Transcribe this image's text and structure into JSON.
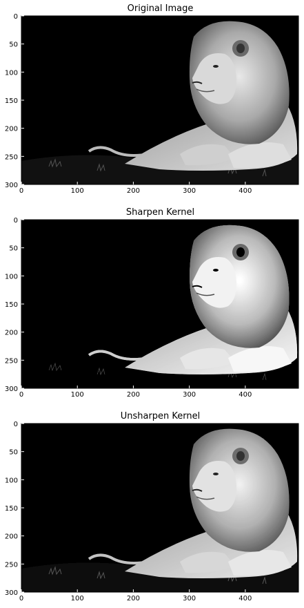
{
  "figure": {
    "panels": [
      {
        "title": "Original Image",
        "variant": "original"
      },
      {
        "title": "Sharpen Kernel",
        "variant": "sharpen"
      },
      {
        "title": "Unsharpen Kernel",
        "variant": "unsharpen"
      }
    ],
    "x_ticks": [
      "0",
      "100",
      "200",
      "300",
      "400"
    ],
    "y_ticks": [
      "0",
      "50",
      "100",
      "150",
      "200",
      "250",
      "300"
    ],
    "image_description": "grayscale lion lying on grass against black background",
    "colors": {
      "background": "#000000",
      "frame": "#000000",
      "page": "#ffffff"
    }
  }
}
